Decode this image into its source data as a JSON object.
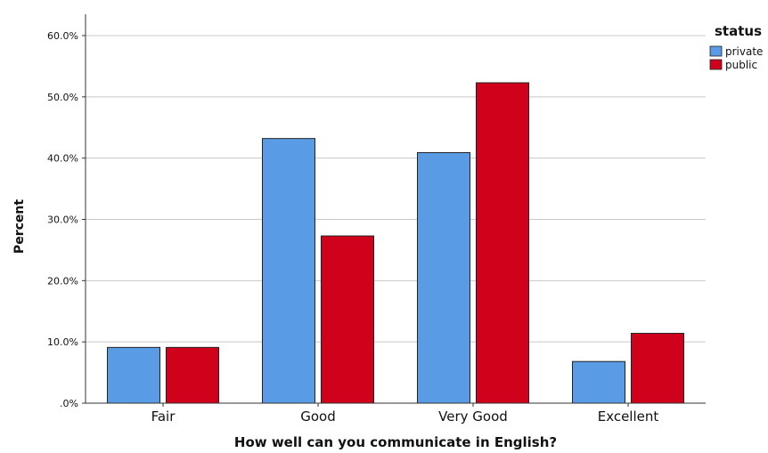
{
  "chart_data": {
    "type": "bar",
    "title": "",
    "xlabel": "How well can you communicate in English?",
    "ylabel": "Percent",
    "categories": [
      "Fair",
      "Good",
      "Very Good",
      "Excellent"
    ],
    "series": [
      {
        "name": "private",
        "values": [
          9.1,
          43.2,
          40.9,
          6.8
        ],
        "color": "#5a9be6"
      },
      {
        "name": "public",
        "values": [
          9.1,
          27.3,
          52.3,
          11.4
        ],
        "color": "#d0021b"
      }
    ],
    "ylim": [
      0,
      60
    ],
    "yticks": [
      ".0%",
      "10.0%",
      "20.0%",
      "30.0%",
      "40.0%",
      "50.0%",
      "60.0%"
    ],
    "grid": true,
    "legend": {
      "title": "status",
      "position": "top-right"
    }
  }
}
